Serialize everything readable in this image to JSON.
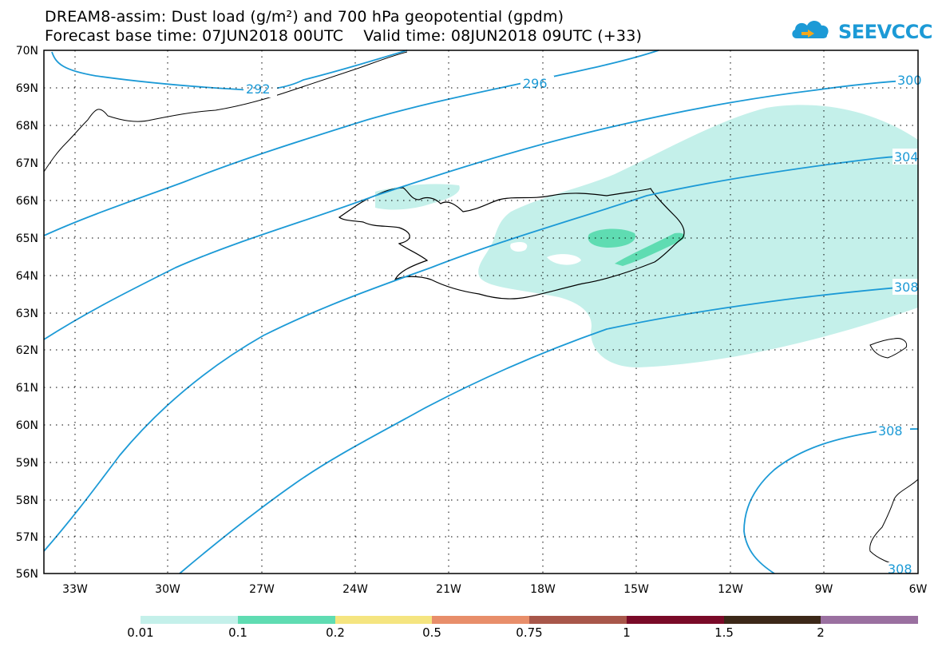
{
  "header": {
    "title_line1": "DREAM8-assim: Dust load (g/m²) and 700 hPa geopotential (gpdm)",
    "title_line2": "Forecast base time: 07JUN2018 00UTC    Valid time: 08JUN2018 09UTC (+33)"
  },
  "logo": {
    "text": "SEEVCCC"
  },
  "map": {
    "lon_range": [
      -34.5,
      -6
    ],
    "lat_range": [
      56,
      70
    ],
    "lat_ticks": [
      "70N",
      "69N",
      "68N",
      "67N",
      "66N",
      "65N",
      "64N",
      "63N",
      "62N",
      "61N",
      "60N",
      "59N",
      "58N",
      "57N",
      "56N"
    ],
    "lon_ticks": [
      "33W",
      "30W",
      "27W",
      "24W",
      "21W",
      "18W",
      "15W",
      "12W",
      "9W",
      "6W"
    ],
    "contours": [
      {
        "label": "292"
      },
      {
        "label": "296"
      },
      {
        "label": "300"
      },
      {
        "label": "304"
      },
      {
        "label": "308"
      },
      {
        "label": "308"
      },
      {
        "label": "308"
      }
    ],
    "colors": {
      "contour": "#1c9ad6",
      "dust_low": "#c4f0ea",
      "dust_mid": "#5fdcb2"
    }
  },
  "legend": {
    "labels": [
      "0.01",
      "0.1",
      "0.2",
      "0.5",
      "0.75",
      "1",
      "1.5",
      "2"
    ],
    "colors": [
      "#c4f0ea",
      "#5fdcb2",
      "#f5e580",
      "#e88e6a",
      "#a8574a",
      "#7a0a28",
      "#3c2818",
      "#9a70a0"
    ]
  }
}
